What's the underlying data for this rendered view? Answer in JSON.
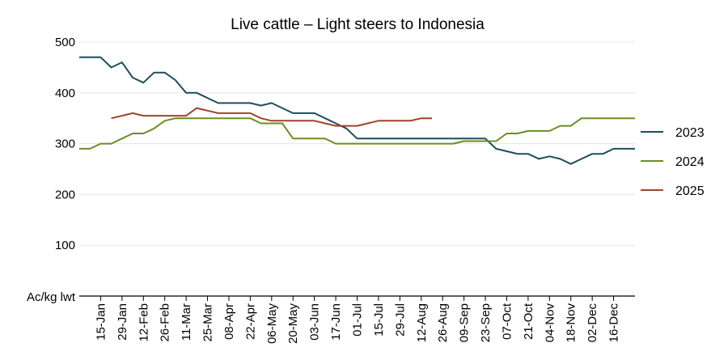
{
  "chart_data": {
    "type": "line",
    "title": "Live cattle – Light steers to Indonesia",
    "ylabel": "Ac/kg lwt",
    "xlabel": "",
    "ylim": [
      0,
      500
    ],
    "yticks": [
      100,
      200,
      300,
      400,
      500
    ],
    "grid": true,
    "legend_position": "right",
    "x_tick_labels": [
      "15-Jan",
      "29-Jan",
      "12-Feb",
      "26-Feb",
      "11-Mar",
      "25-Mar",
      "08-Apr",
      "22-Apr",
      "06-May",
      "20-May",
      "03-Jun",
      "17-Jun",
      "01-Jul",
      "15-Jul",
      "29-Jul",
      "12-Aug",
      "26-Aug",
      "09-Sep",
      "23-Sep",
      "07-Oct",
      "21-Oct",
      "04-Nov",
      "18-Nov",
      "02-Dec",
      "16-Dec"
    ],
    "x_tick_weeks": [
      2,
      4,
      6,
      8,
      10,
      12,
      14,
      16,
      18,
      20,
      22,
      24,
      26,
      28,
      30,
      32,
      34,
      36,
      38,
      40,
      42,
      44,
      46,
      48,
      50
    ],
    "x_range_weeks": [
      0,
      52
    ],
    "series": [
      {
        "name": "2023",
        "color": "#1d4e5a",
        "points": [
          [
            0,
            470
          ],
          [
            1,
            470
          ],
          [
            2,
            470
          ],
          [
            3,
            450
          ],
          [
            4,
            460
          ],
          [
            5,
            430
          ],
          [
            6,
            420
          ],
          [
            7,
            440
          ],
          [
            8,
            440
          ],
          [
            9,
            425
          ],
          [
            10,
            400
          ],
          [
            11,
            400
          ],
          [
            12,
            390
          ],
          [
            13,
            380
          ],
          [
            14,
            380
          ],
          [
            15,
            380
          ],
          [
            16,
            380
          ],
          [
            17,
            375
          ],
          [
            18,
            380
          ],
          [
            19,
            370
          ],
          [
            20,
            360
          ],
          [
            21,
            360
          ],
          [
            22,
            360
          ],
          [
            23,
            350
          ],
          [
            24,
            340
          ],
          [
            25,
            330
          ],
          [
            26,
            310
          ],
          [
            27,
            310
          ],
          [
            28,
            310
          ],
          [
            29,
            310
          ],
          [
            30,
            310
          ],
          [
            31,
            310
          ],
          [
            32,
            310
          ],
          [
            33,
            310
          ],
          [
            34,
            310
          ],
          [
            35,
            310
          ],
          [
            36,
            310
          ],
          [
            37,
            310
          ],
          [
            38,
            310
          ],
          [
            39,
            290
          ],
          [
            40,
            285
          ],
          [
            41,
            280
          ],
          [
            42,
            280
          ],
          [
            43,
            270
          ],
          [
            44,
            275
          ],
          [
            45,
            270
          ],
          [
            46,
            260
          ],
          [
            47,
            270
          ],
          [
            48,
            280
          ],
          [
            49,
            280
          ],
          [
            50,
            290
          ],
          [
            51,
            290
          ],
          [
            52,
            290
          ]
        ]
      },
      {
        "name": "2024",
        "color": "#6b8e23",
        "points": [
          [
            0,
            290
          ],
          [
            1,
            290
          ],
          [
            2,
            300
          ],
          [
            3,
            300
          ],
          [
            4,
            310
          ],
          [
            5,
            320
          ],
          [
            6,
            320
          ],
          [
            7,
            330
          ],
          [
            8,
            345
          ],
          [
            9,
            350
          ],
          [
            10,
            350
          ],
          [
            11,
            350
          ],
          [
            12,
            350
          ],
          [
            13,
            350
          ],
          [
            14,
            350
          ],
          [
            15,
            350
          ],
          [
            16,
            350
          ],
          [
            17,
            340
          ],
          [
            18,
            340
          ],
          [
            19,
            340
          ],
          [
            20,
            310
          ],
          [
            21,
            310
          ],
          [
            22,
            310
          ],
          [
            23,
            310
          ],
          [
            24,
            300
          ],
          [
            25,
            300
          ],
          [
            26,
            300
          ],
          [
            27,
            300
          ],
          [
            28,
            300
          ],
          [
            29,
            300
          ],
          [
            30,
            300
          ],
          [
            31,
            300
          ],
          [
            32,
            300
          ],
          [
            33,
            300
          ],
          [
            34,
            300
          ],
          [
            35,
            300
          ],
          [
            36,
            305
          ],
          [
            37,
            305
          ],
          [
            38,
            305
          ],
          [
            39,
            305
          ],
          [
            40,
            320
          ],
          [
            41,
            320
          ],
          [
            42,
            325
          ],
          [
            43,
            325
          ],
          [
            44,
            325
          ],
          [
            45,
            335
          ],
          [
            46,
            335
          ],
          [
            47,
            350
          ],
          [
            48,
            350
          ],
          [
            49,
            350
          ],
          [
            50,
            350
          ],
          [
            51,
            350
          ],
          [
            52,
            350
          ]
        ]
      },
      {
        "name": "2025",
        "color": "#a0442c",
        "points": [
          [
            3,
            350
          ],
          [
            4,
            355
          ],
          [
            5,
            360
          ],
          [
            6,
            355
          ],
          [
            7,
            355
          ],
          [
            8,
            355
          ],
          [
            9,
            355
          ],
          [
            10,
            355
          ],
          [
            11,
            370
          ],
          [
            12,
            365
          ],
          [
            13,
            360
          ],
          [
            14,
            360
          ],
          [
            15,
            360
          ],
          [
            16,
            360
          ],
          [
            17,
            350
          ],
          [
            18,
            345
          ],
          [
            19,
            345
          ],
          [
            20,
            345
          ],
          [
            21,
            345
          ],
          [
            22,
            345
          ],
          [
            23,
            340
          ],
          [
            24,
            335
          ],
          [
            25,
            335
          ],
          [
            26,
            335
          ],
          [
            27,
            340
          ],
          [
            28,
            345
          ],
          [
            29,
            345
          ],
          [
            30,
            345
          ],
          [
            31,
            345
          ],
          [
            32,
            350
          ],
          [
            33,
            350
          ]
        ]
      }
    ]
  }
}
